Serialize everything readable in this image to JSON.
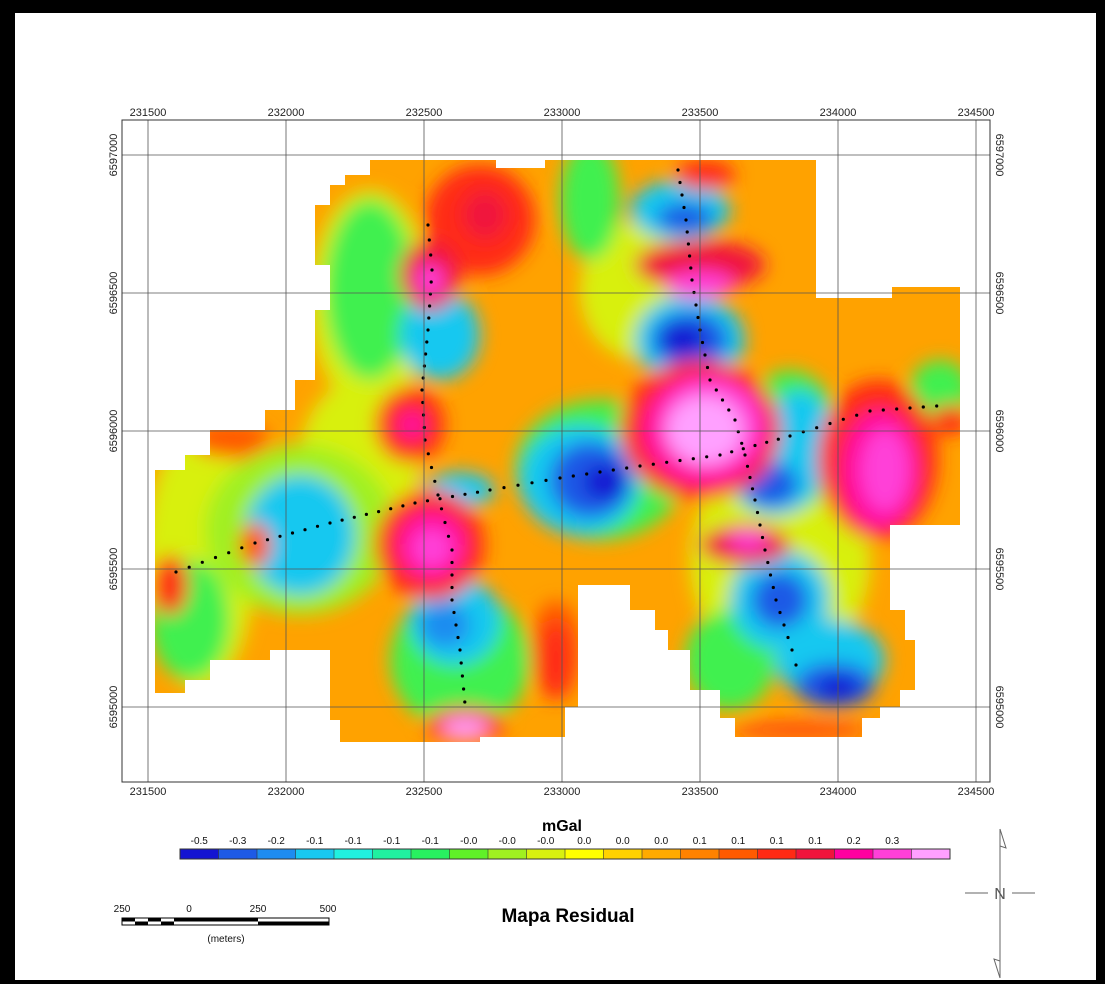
{
  "map": {
    "title": "Mapa Residual",
    "legend_unit": "mGal",
    "x_ticks": [
      "231500",
      "232000",
      "232500",
      "233000",
      "233500",
      "234000",
      "234500"
    ],
    "y_ticks": [
      "6597000",
      "6596500",
      "6596000",
      "6595500",
      "6595000"
    ],
    "legend_labels": [
      "-0.5",
      "-0.3",
      "-0.2",
      "-0.1",
      "-0.1",
      "-0.1",
      "-0.1",
      "-0.0",
      "-0.0",
      "-0.0",
      "0.0",
      "0.0",
      "0.0",
      "0.1",
      "0.1",
      "0.1",
      "0.1",
      "0.2",
      "0.3"
    ],
    "legend_colors": [
      "#1414d2",
      "#1e5ae6",
      "#1e8cf0",
      "#18c8f0",
      "#20f0e0",
      "#20f0a0",
      "#28f060",
      "#60f028",
      "#a0f020",
      "#d8f010",
      "#ffff00",
      "#ffd200",
      "#ffaa00",
      "#ff8200",
      "#ff5a00",
      "#ff2a14",
      "#f0143c",
      "#ff00a0",
      "#ff40d8",
      "#ffa0ff"
    ],
    "scale_bar": {
      "labels": [
        "250",
        "0",
        "250",
        "500"
      ],
      "unit": "(meters)"
    },
    "north_arrow": "north-arrow-icon"
  }
}
